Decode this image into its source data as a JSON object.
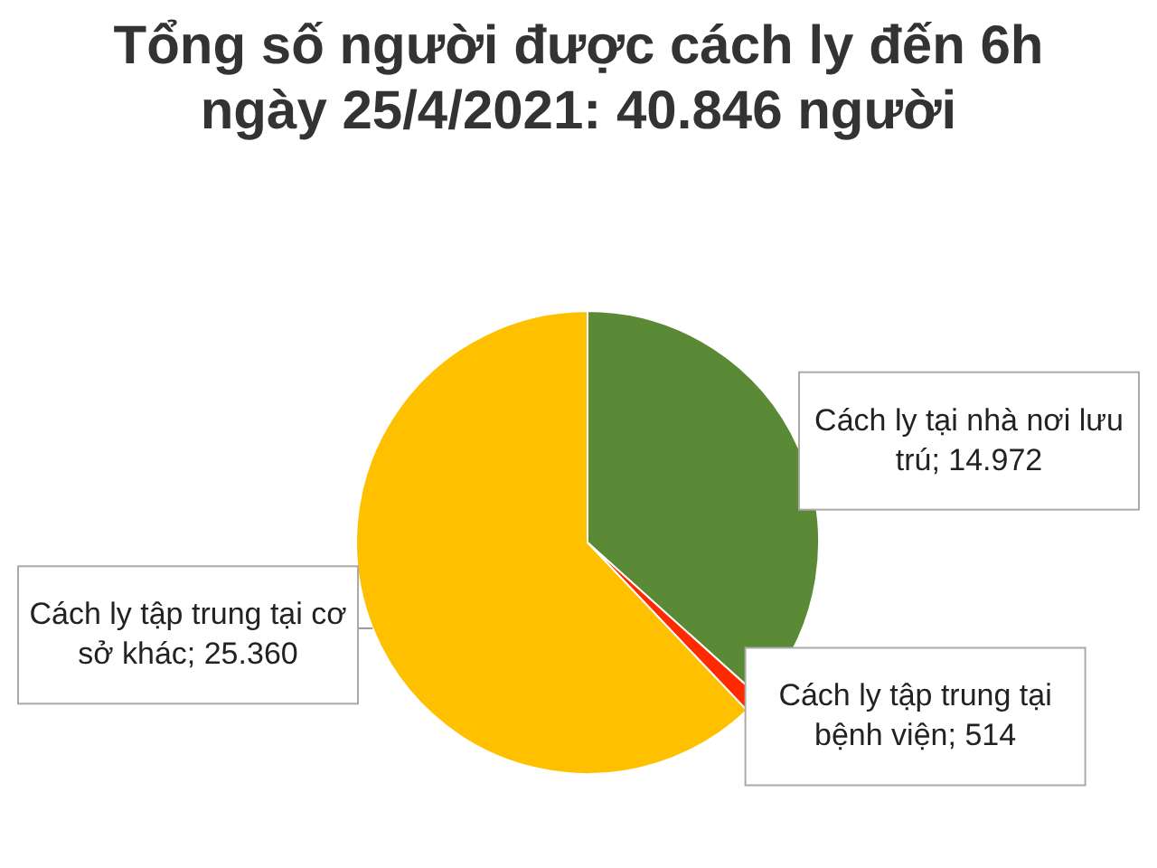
{
  "chart_data": {
    "type": "pie",
    "title": "Tổng số người được cách ly đến 6h ngày 25/4/2021: 40.846 người",
    "categories": [
      "Cách ly tại nhà nơi lưu trú",
      "Cách ly tập trung tại bệnh viện",
      "Cách ly tập trung tại cơ sở khác"
    ],
    "values": [
      14972,
      514,
      25360
    ],
    "colors": [
      "#5a8a35",
      "#ff2a00",
      "#ffc000"
    ],
    "value_labels": [
      "14.972",
      "514",
      "25.360"
    ]
  }
}
